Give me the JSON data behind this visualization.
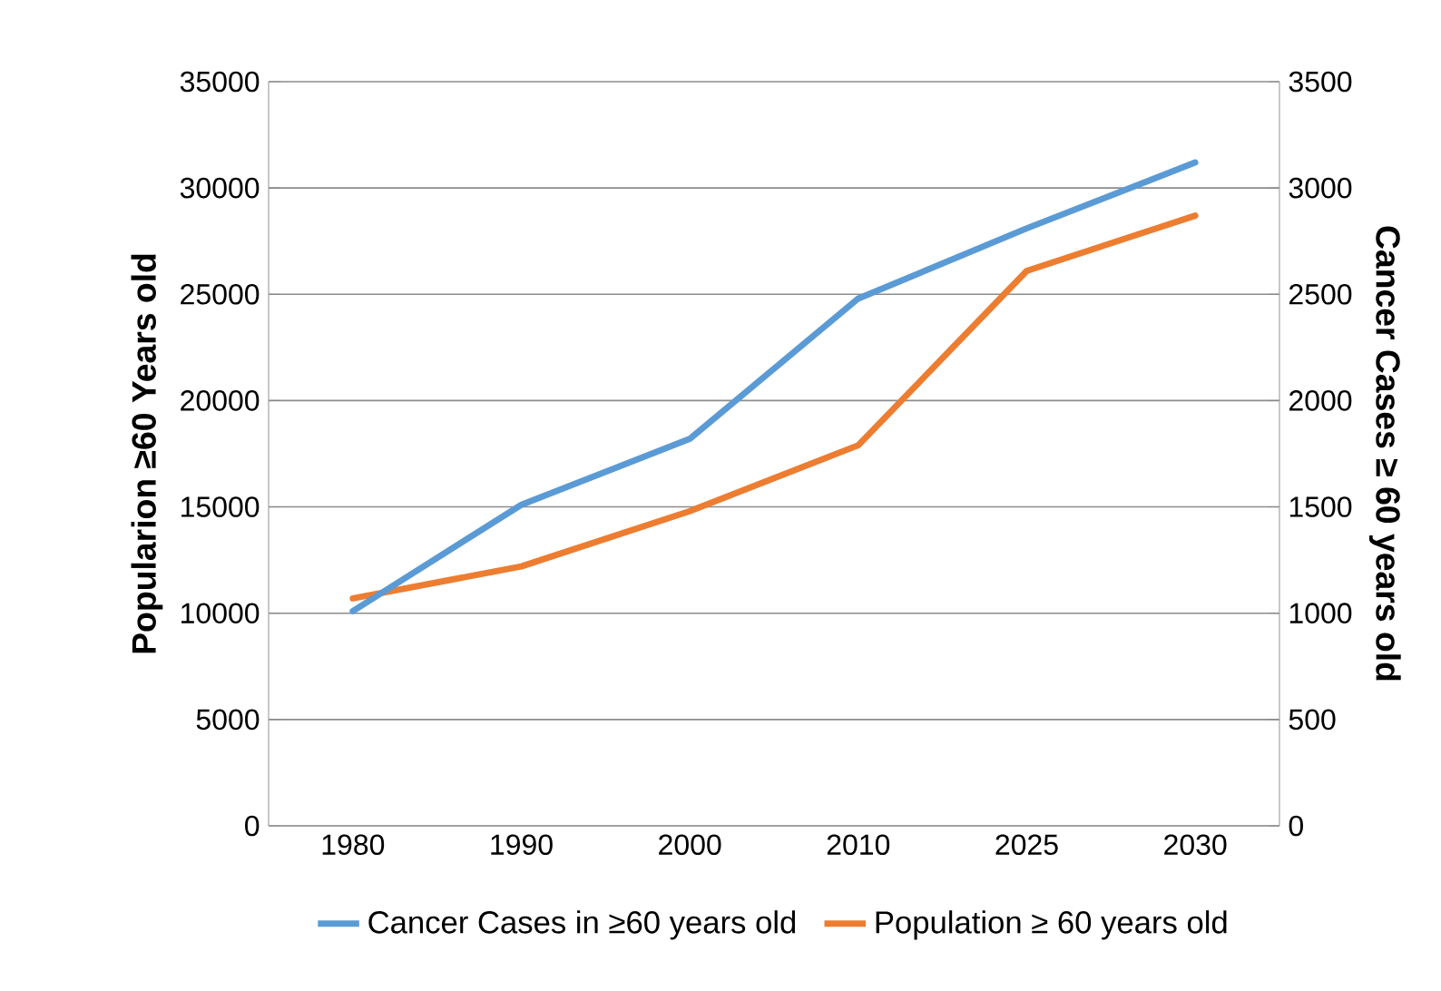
{
  "chart_data": {
    "type": "line",
    "categories": [
      "1980",
      "1990",
      "2000",
      "2010",
      "2025",
      "2030"
    ],
    "series": [
      {
        "name": "Cancer Cases in ≥60 years old",
        "color": "#5b9bd5",
        "axis": "y2",
        "values": [
          1010,
          1510,
          1820,
          2480,
          2810,
          3120
        ]
      },
      {
        "name": "Population ≥ 60 years old",
        "color": "#ed7d31",
        "values": [
          10700,
          12200,
          14800,
          17900,
          26100,
          28700
        ]
      }
    ],
    "ylabel": "Popularion ≥60 Years old",
    "y2label": "Cancer Cases ≥ 60 years old",
    "ylim": [
      0,
      35000
    ],
    "yticks": [
      0,
      5000,
      10000,
      15000,
      20000,
      25000,
      30000,
      35000
    ],
    "y2lim": [
      0,
      3500
    ],
    "y2ticks": [
      0,
      500,
      1000,
      1500,
      2000,
      2500,
      3000,
      3500
    ],
    "grid": "y",
    "legend": "bottom"
  }
}
